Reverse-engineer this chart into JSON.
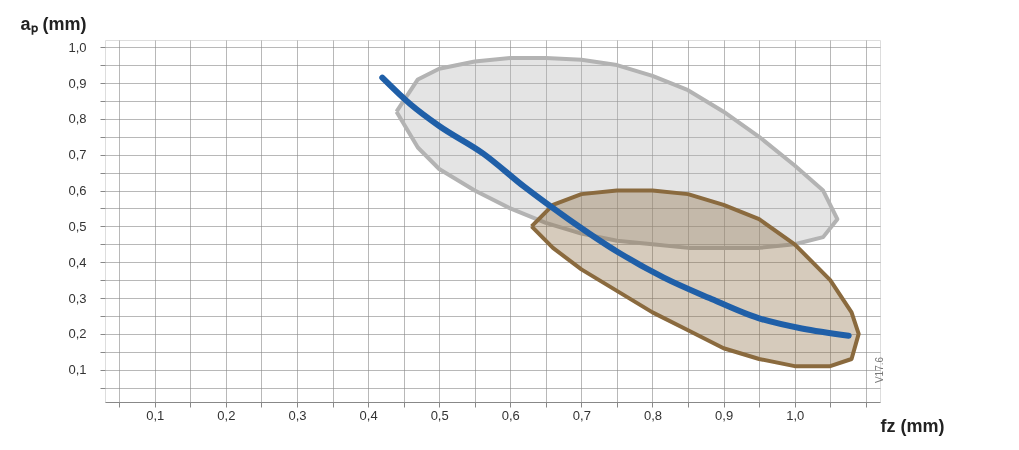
{
  "chart_data": {
    "type": "line",
    "xlabel": "fz (mm)",
    "ylabel": "aₚ (mm)",
    "xlim": [
      0.03,
      1.12
    ],
    "ylim": [
      0.01,
      1.02
    ],
    "xticks": [
      {
        "value": 0.05,
        "label": null
      },
      {
        "value": 0.1,
        "label": "0,1"
      },
      {
        "value": 0.15,
        "label": null
      },
      {
        "value": 0.2,
        "label": "0,2"
      },
      {
        "value": 0.25,
        "label": null
      },
      {
        "value": 0.3,
        "label": "0,3"
      },
      {
        "value": 0.35,
        "label": null
      },
      {
        "value": 0.4,
        "label": "0,4"
      },
      {
        "value": 0.45,
        "label": null
      },
      {
        "value": 0.5,
        "label": "0,5"
      },
      {
        "value": 0.55,
        "label": null
      },
      {
        "value": 0.6,
        "label": "0,6"
      },
      {
        "value": 0.65,
        "label": null
      },
      {
        "value": 0.7,
        "label": "0,7"
      },
      {
        "value": 0.75,
        "label": null
      },
      {
        "value": 0.8,
        "label": "0,8"
      },
      {
        "value": 0.85,
        "label": null
      },
      {
        "value": 0.9,
        "label": "0,9"
      },
      {
        "value": 0.95,
        "label": null
      },
      {
        "value": 1.0,
        "label": "1,0"
      },
      {
        "value": 1.05,
        "label": null
      },
      {
        "value": 1.1,
        "label": null
      }
    ],
    "yticks": [
      {
        "value": 0.05,
        "label": null
      },
      {
        "value": 0.1,
        "label": "0,1"
      },
      {
        "value": 0.15,
        "label": null
      },
      {
        "value": 0.2,
        "label": "0,2"
      },
      {
        "value": 0.25,
        "label": null
      },
      {
        "value": 0.3,
        "label": "0,3"
      },
      {
        "value": 0.35,
        "label": null
      },
      {
        "value": 0.4,
        "label": "0,4"
      },
      {
        "value": 0.45,
        "label": null
      },
      {
        "value": 0.5,
        "label": "0,5"
      },
      {
        "value": 0.55,
        "label": null
      },
      {
        "value": 0.6,
        "label": "0,6"
      },
      {
        "value": 0.65,
        "label": null
      },
      {
        "value": 0.7,
        "label": "0,7"
      },
      {
        "value": 0.75,
        "label": null
      },
      {
        "value": 0.8,
        "label": "0,8"
      },
      {
        "value": 0.85,
        "label": null
      },
      {
        "value": 0.9,
        "label": "0,9"
      },
      {
        "value": 0.95,
        "label": null
      },
      {
        "value": 1.0,
        "label": "1,0"
      }
    ],
    "grid": true,
    "annotations": [
      "V17.6"
    ],
    "series": [
      {
        "type": "area",
        "color": "#b3b3b3",
        "x": [
          0.44,
          0.47,
          0.5,
          0.55,
          0.6,
          0.65,
          0.7,
          0.75,
          0.8,
          0.85,
          0.9,
          0.95,
          1.0,
          1.04,
          1.06,
          1.04,
          1.0,
          0.95,
          0.9,
          0.85,
          0.8,
          0.75,
          0.7,
          0.65,
          0.6,
          0.55,
          0.5,
          0.47,
          0.44
        ],
        "values": [
          0.82,
          0.91,
          0.94,
          0.96,
          0.97,
          0.97,
          0.965,
          0.95,
          0.92,
          0.88,
          0.82,
          0.75,
          0.67,
          0.6,
          0.52,
          0.47,
          0.45,
          0.44,
          0.44,
          0.44,
          0.45,
          0.46,
          0.48,
          0.51,
          0.55,
          0.6,
          0.66,
          0.72,
          0.82
        ]
      },
      {
        "type": "area",
        "color": "#8a6a3e",
        "x": [
          0.63,
          0.66,
          0.7,
          0.75,
          0.8,
          0.85,
          0.9,
          0.95,
          1.0,
          1.05,
          1.08,
          1.09,
          1.08,
          1.05,
          1.0,
          0.95,
          0.9,
          0.85,
          0.8,
          0.75,
          0.7,
          0.66,
          0.63
        ],
        "values": [
          0.5,
          0.56,
          0.59,
          0.6,
          0.6,
          0.59,
          0.56,
          0.52,
          0.45,
          0.35,
          0.26,
          0.2,
          0.13,
          0.11,
          0.11,
          0.13,
          0.16,
          0.21,
          0.26,
          0.32,
          0.38,
          0.44,
          0.5
        ]
      },
      {
        "color": "#1f5fa8",
        "x": [
          0.42,
          0.46,
          0.5,
          0.562,
          0.62,
          0.682,
          0.75,
          0.816,
          0.88,
          0.949,
          1.01,
          1.076
        ],
        "values": [
          0.915,
          0.84,
          0.78,
          0.703,
          0.61,
          0.52,
          0.43,
          0.357,
          0.3,
          0.244,
          0.215,
          0.195
        ]
      }
    ]
  }
}
